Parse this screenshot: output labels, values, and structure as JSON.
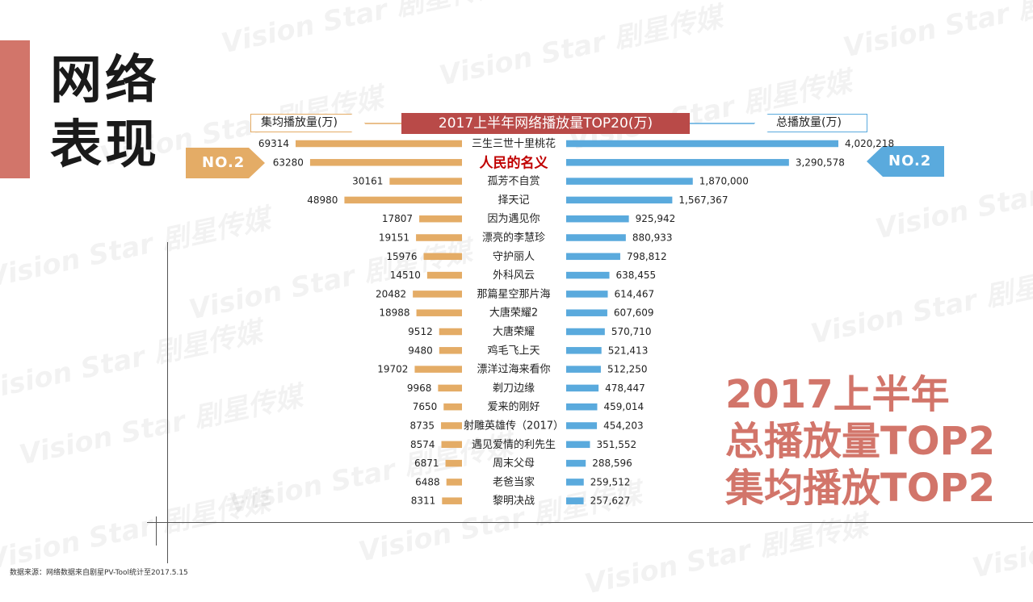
{
  "section_title_line1": "网络",
  "section_title_line2": "表现",
  "watermark_text": "Vision Star 剧星传媒",
  "left_tag": "集均播放量(万)",
  "right_tag": "总播放量(万)",
  "left_badge": "NO.2",
  "right_badge": "NO.2",
  "caption": [
    "2017上半年",
    "总播放量TOP2",
    "集均播放TOP2"
  ],
  "source": "数据来源：网络数据来自剧星PV-Tool统计至2017.5.15",
  "colors": {
    "accent": "#d2756a",
    "title_bar": "#b94a48",
    "left_bar": "#e4ac66",
    "right_bar": "#5aaadd",
    "highlight_text": "#c00000"
  },
  "chart_data": {
    "type": "bar",
    "title": "2017上半年网络播放量TOP20(万)",
    "highlight_index": 1,
    "categories": [
      "三生三世十里桃花",
      "人民的名义",
      "孤芳不自赏",
      "择天记",
      "因为遇见你",
      "漂亮的李慧珍",
      "守护丽人",
      "外科风云",
      "那篇星空那片海",
      "大唐荣耀2",
      "大唐荣耀",
      "鸡毛飞上天",
      "漂洋过海来看你",
      "剃刀边缘",
      "爱来的刚好",
      "射雕英雄传（2017）",
      "遇见爱情的利先生",
      "周末父母",
      "老爸当家",
      "黎明决战"
    ],
    "series": [
      {
        "name": "集均播放量(万)",
        "values": [
          69314,
          63280,
          30161,
          48980,
          17807,
          19151,
          15976,
          14510,
          20482,
          18988,
          9512,
          9480,
          19702,
          9968,
          7650,
          8735,
          8574,
          6871,
          6488,
          8311
        ],
        "labels": [
          "69314",
          "63280",
          "30161",
          "48980",
          "17807",
          "19151",
          "15976",
          "14510",
          "20482",
          "18988",
          "9512",
          "9480",
          "19702",
          "9968",
          "7650",
          "8735",
          "8574",
          "6871",
          "6488",
          "8311"
        ]
      },
      {
        "name": "总播放量(万)",
        "values": [
          4020218,
          3290578,
          1870000,
          1567367,
          925942,
          880933,
          798812,
          638455,
          614467,
          607609,
          570710,
          521413,
          512250,
          478447,
          459014,
          454203,
          351552,
          288596,
          259512,
          257627
        ],
        "labels": [
          "4,020,218",
          "3,290,578",
          "1,870,000",
          "1,567,367",
          "925,942",
          "880,933",
          "798,812",
          "638,455",
          "614,467",
          "607,609",
          "570,710",
          "521,413",
          "512,250",
          "478,447",
          "459,014",
          "454,203",
          "351,552",
          "288,596",
          "259,512",
          "257,627"
        ]
      }
    ]
  }
}
